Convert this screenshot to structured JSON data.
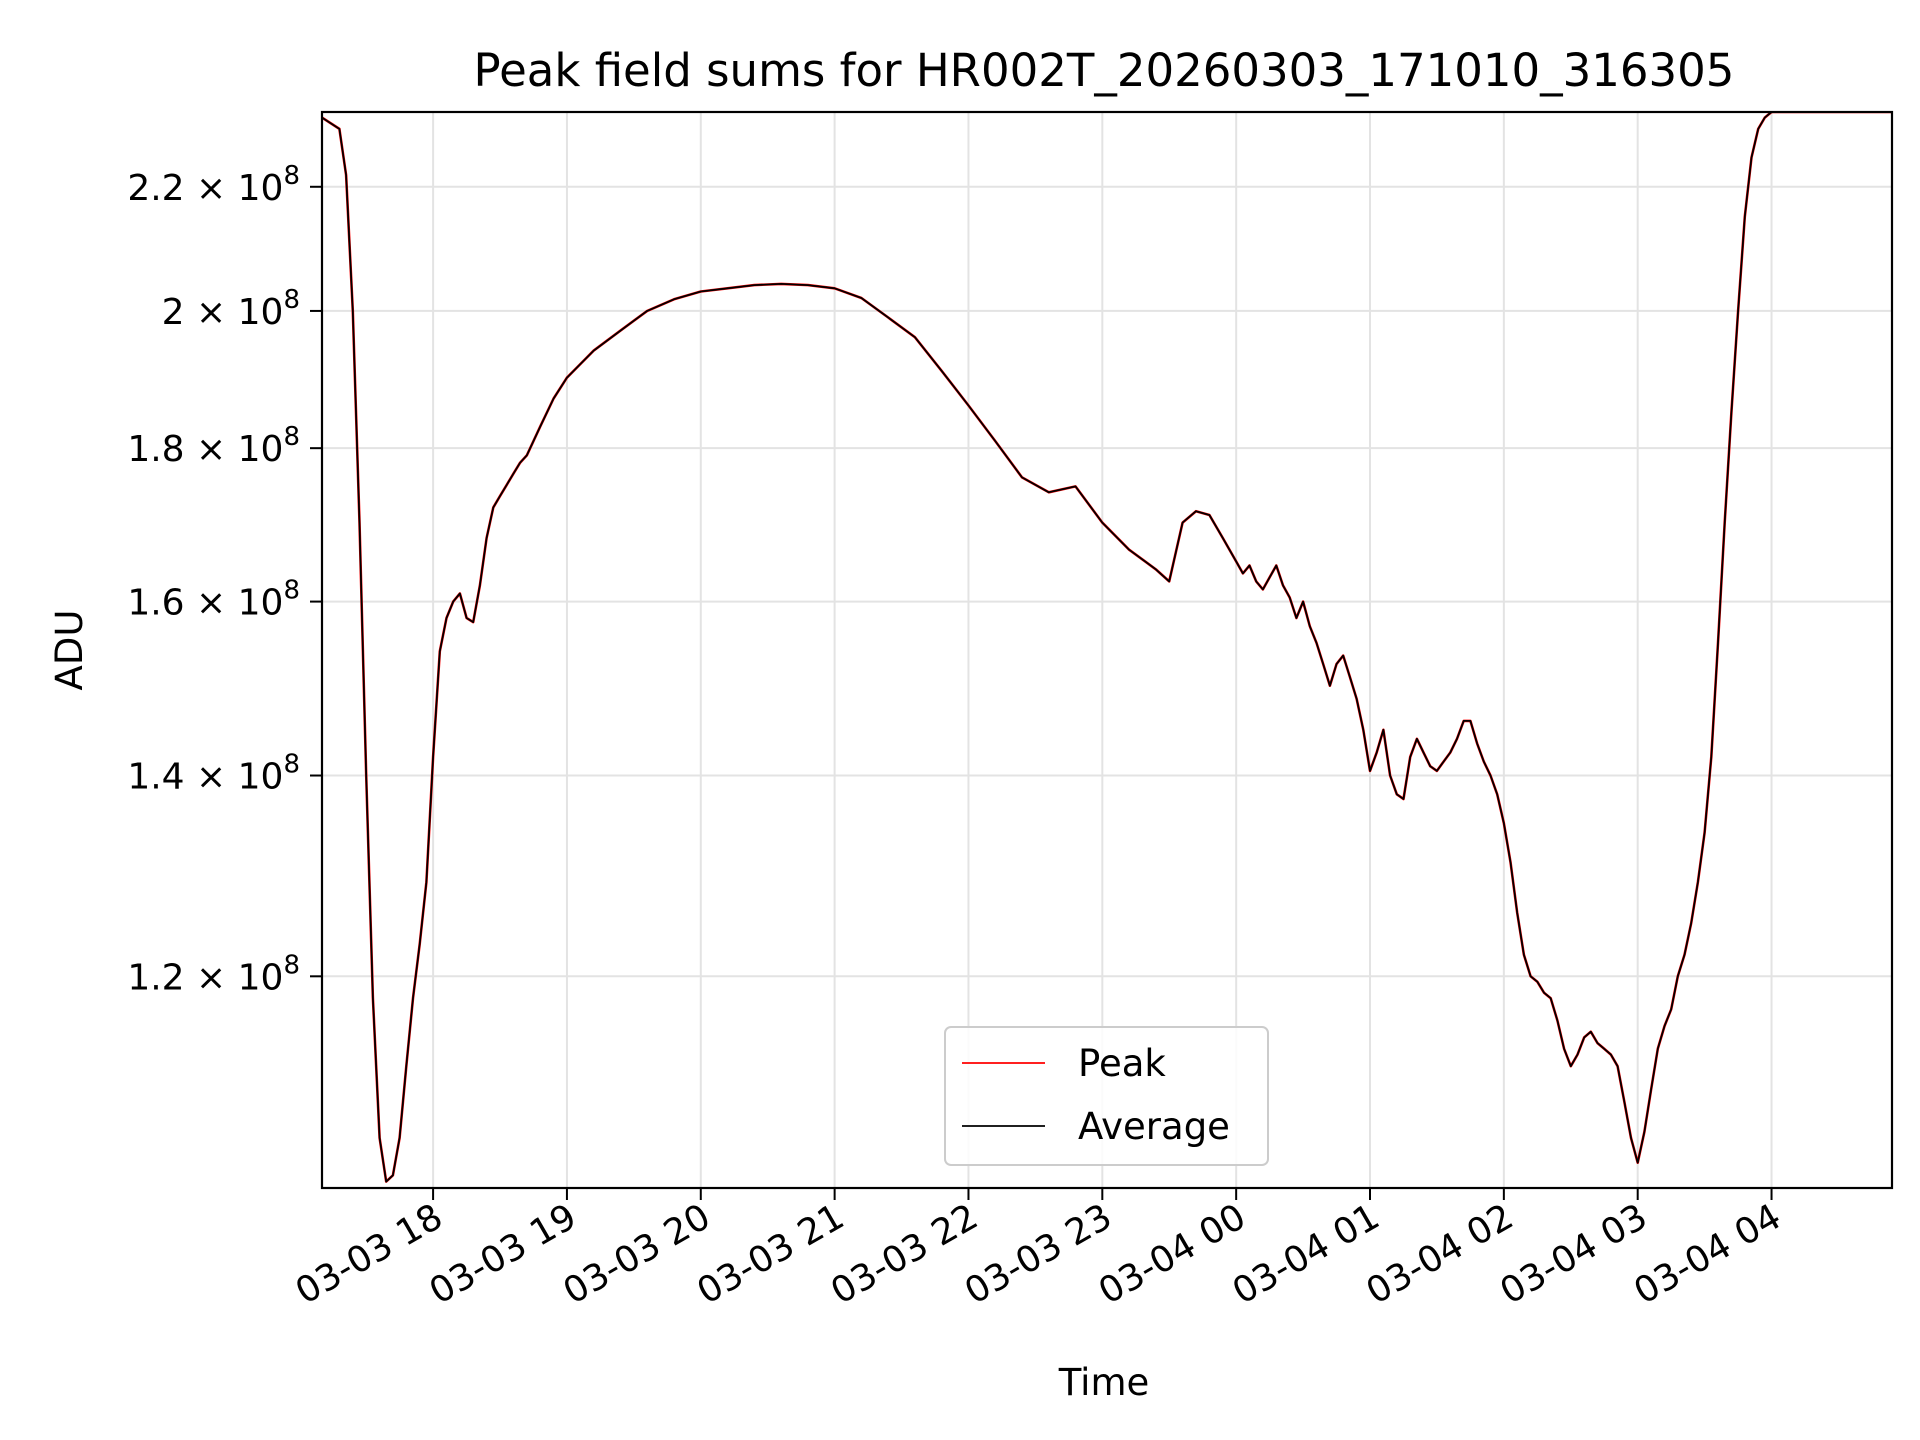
{
  "chart_data": {
    "type": "line",
    "title": "Peak field sums for HR002T_20260303_171010_316305",
    "xlabel": "Time",
    "ylabel": "ADU",
    "yscale": "log",
    "xlim": [
      17.17,
      28.9
    ],
    "ylim": [
      102000000,
      233000000
    ],
    "grid": true,
    "legend_position": "lower-center",
    "x_ticks": [
      {
        "value": 18,
        "label": "03-03 18"
      },
      {
        "value": 19,
        "label": "03-03 19"
      },
      {
        "value": 20,
        "label": "03-03 20"
      },
      {
        "value": 21,
        "label": "03-03 21"
      },
      {
        "value": 22,
        "label": "03-03 22"
      },
      {
        "value": 23,
        "label": "03-03 23"
      },
      {
        "value": 24,
        "label": "03-04 00"
      },
      {
        "value": 25,
        "label": "03-04 01"
      },
      {
        "value": 26,
        "label": "03-04 02"
      },
      {
        "value": 27,
        "label": "03-04 03"
      },
      {
        "value": 28,
        "label": "03-04 04"
      }
    ],
    "y_ticks": [
      {
        "value": 120000000,
        "mantissa": "1.2",
        "base": "10",
        "exp": "8"
      },
      {
        "value": 140000000,
        "mantissa": "1.4",
        "base": "10",
        "exp": "8"
      },
      {
        "value": 160000000,
        "mantissa": "1.6",
        "base": "10",
        "exp": "8"
      },
      {
        "value": 180000000,
        "mantissa": "1.8",
        "base": "10",
        "exp": "8"
      },
      {
        "value": 200000000,
        "mantissa": "2",
        "base": "10",
        "exp": "8"
      },
      {
        "value": 220000000,
        "mantissa": "2.2",
        "base": "10",
        "exp": "8"
      }
    ],
    "x_unit": "hours since 2026-03-03 00:00",
    "y_unit": "ADU",
    "series": [
      {
        "name": "Peak",
        "color": "#ff0000",
        "x": [
          17.17,
          17.3,
          17.35,
          17.4,
          17.45,
          17.5,
          17.55,
          17.6,
          17.65,
          17.7,
          17.75,
          17.8,
          17.85,
          17.9,
          17.95,
          18.0,
          18.05,
          18.1,
          18.15,
          18.2,
          18.25,
          18.3,
          18.35,
          18.4,
          18.45,
          18.5,
          18.55,
          18.6,
          18.65,
          18.7,
          18.8,
          18.9,
          19.0,
          19.1,
          19.2,
          19.3,
          19.4,
          19.6,
          19.8,
          20.0,
          20.2,
          20.4,
          20.6,
          20.8,
          21.0,
          21.2,
          21.4,
          21.6,
          21.8,
          22.0,
          22.2,
          22.4,
          22.6,
          22.8,
          23.0,
          23.2,
          23.4,
          23.5,
          23.6,
          23.7,
          23.8,
          23.9,
          24.0,
          24.05,
          24.1,
          24.15,
          24.2,
          24.25,
          24.3,
          24.35,
          24.4,
          24.45,
          24.5,
          24.55,
          24.6,
          24.65,
          24.7,
          24.75,
          24.8,
          24.85,
          24.9,
          24.95,
          25.0,
          25.05,
          25.1,
          25.15,
          25.2,
          25.25,
          25.3,
          25.35,
          25.4,
          25.45,
          25.5,
          25.55,
          25.6,
          25.65,
          25.7,
          25.75,
          25.8,
          25.85,
          25.9,
          25.95,
          26.0,
          26.05,
          26.1,
          26.15,
          26.2,
          26.25,
          26.3,
          26.35,
          26.4,
          26.45,
          26.5,
          26.55,
          26.6,
          26.65,
          26.7,
          26.75,
          26.8,
          26.85,
          26.9,
          26.95,
          27.0,
          27.05,
          27.1,
          27.15,
          27.2,
          27.25,
          27.3,
          27.35,
          27.4,
          27.45,
          27.5,
          27.55,
          27.6,
          27.65,
          27.7,
          27.75,
          27.8,
          27.85,
          27.9,
          27.95,
          28.0,
          28.05,
          28.1,
          28.15,
          28.2,
          28.25,
          28.3,
          28.35,
          28.4,
          28.45,
          28.5,
          28.55,
          28.6,
          28.7,
          28.8,
          28.9
        ],
        "y": [
          232000000,
          230000000,
          222000000,
          200000000,
          170000000,
          140000000,
          118000000,
          106000000,
          102500000,
          103000000,
          106000000,
          112000000,
          118000000,
          123000000,
          129000000,
          142000000,
          154000000,
          158000000,
          160000000,
          161000000,
          158000000,
          157500000,
          162000000,
          168000000,
          172000000,
          173500000,
          175000000,
          176500000,
          178000000,
          179000000,
          183000000,
          187000000,
          190000000,
          192000000,
          194000000,
          195500000,
          197000000,
          200000000,
          201800000,
          203000000,
          203500000,
          204000000,
          204200000,
          204000000,
          203500000,
          202000000,
          199000000,
          196000000,
          191000000,
          186000000,
          181000000,
          176000000,
          174000000,
          174800000,
          170000000,
          166500000,
          164000000,
          162500000,
          170000000,
          171500000,
          171000000,
          168000000,
          165000000,
          163500000,
          164500000,
          162500000,
          161500000,
          163000000,
          164500000,
          162000000,
          160500000,
          158000000,
          160000000,
          157000000,
          155000000,
          152500000,
          150000000,
          152500000,
          153500000,
          151000000,
          148500000,
          145000000,
          140500000,
          142500000,
          145000000,
          140000000,
          138000000,
          137500000,
          142000000,
          144000000,
          142500000,
          141000000,
          140500000,
          141500000,
          142500000,
          144000000,
          146000000,
          146000000,
          143500000,
          141500000,
          140000000,
          138000000,
          135000000,
          131000000,
          126000000,
          122000000,
          120000000,
          119500000,
          118500000,
          118000000,
          116000000,
          113500000,
          112000000,
          113000000,
          114500000,
          115000000,
          114000000,
          113500000,
          113000000,
          112000000,
          109000000,
          106000000,
          104000000,
          106500000,
          110000000,
          113500000,
          115500000,
          117000000,
          120000000,
          122000000,
          125000000,
          129000000,
          134000000,
          142000000,
          155000000,
          170000000,
          185000000,
          200000000,
          215000000,
          225000000,
          230000000,
          232000000,
          233000000,
          233000000,
          233000000,
          233000000,
          233000000,
          233000000,
          233000000,
          233000000,
          233000000,
          233000000,
          233000000,
          233000000,
          233000000,
          233000000,
          233000000,
          233000000
        ]
      },
      {
        "name": "Average",
        "color": "#000000",
        "x": [
          17.17,
          17.3,
          17.35,
          17.4,
          17.45,
          17.5,
          17.55,
          17.6,
          17.65,
          17.7,
          17.75,
          17.8,
          17.85,
          17.9,
          17.95,
          18.0,
          18.05,
          18.1,
          18.15,
          18.2,
          18.25,
          18.3,
          18.35,
          18.4,
          18.45,
          18.5,
          18.55,
          18.6,
          18.65,
          18.7,
          18.8,
          18.9,
          19.0,
          19.1,
          19.2,
          19.3,
          19.4,
          19.6,
          19.8,
          20.0,
          20.2,
          20.4,
          20.6,
          20.8,
          21.0,
          21.2,
          21.4,
          21.6,
          21.8,
          22.0,
          22.2,
          22.4,
          22.6,
          22.8,
          23.0,
          23.2,
          23.4,
          23.5,
          23.6,
          23.7,
          23.8,
          23.9,
          24.0,
          24.05,
          24.1,
          24.15,
          24.2,
          24.25,
          24.3,
          24.35,
          24.4,
          24.45,
          24.5,
          24.55,
          24.6,
          24.65,
          24.7,
          24.75,
          24.8,
          24.85,
          24.9,
          24.95,
          25.0,
          25.05,
          25.1,
          25.15,
          25.2,
          25.25,
          25.3,
          25.35,
          25.4,
          25.45,
          25.5,
          25.55,
          25.6,
          25.65,
          25.7,
          25.75,
          25.8,
          25.85,
          25.9,
          25.95,
          26.0,
          26.05,
          26.1,
          26.15,
          26.2,
          26.25,
          26.3,
          26.35,
          26.4,
          26.45,
          26.5,
          26.55,
          26.6,
          26.65,
          26.7,
          26.75,
          26.8,
          26.85,
          26.9,
          26.95,
          27.0,
          27.05,
          27.1,
          27.15,
          27.2,
          27.25,
          27.3,
          27.35,
          27.4,
          27.45,
          27.5,
          27.55,
          27.6,
          27.65,
          27.7,
          27.75,
          27.8,
          27.85,
          27.9,
          27.95,
          28.0,
          28.05,
          28.1,
          28.15,
          28.2,
          28.25,
          28.3,
          28.35,
          28.4,
          28.45,
          28.5,
          28.55,
          28.6,
          28.7,
          28.8,
          28.9
        ],
        "y": [
          232000000,
          230000000,
          222000000,
          200000000,
          170000000,
          140000000,
          118000000,
          106000000,
          102500000,
          103000000,
          106000000,
          112000000,
          118000000,
          123000000,
          129000000,
          142000000,
          154000000,
          158000000,
          160000000,
          161000000,
          158000000,
          157500000,
          162000000,
          168000000,
          172000000,
          173500000,
          175000000,
          176500000,
          178000000,
          179000000,
          183000000,
          187000000,
          190000000,
          192000000,
          194000000,
          195500000,
          197000000,
          200000000,
          201800000,
          203000000,
          203500000,
          204000000,
          204200000,
          204000000,
          203500000,
          202000000,
          199000000,
          196000000,
          191000000,
          186000000,
          181000000,
          176000000,
          174000000,
          174800000,
          170000000,
          166500000,
          164000000,
          162500000,
          170000000,
          171500000,
          171000000,
          168000000,
          165000000,
          163500000,
          164500000,
          162500000,
          161500000,
          163000000,
          164500000,
          162000000,
          160500000,
          158000000,
          160000000,
          157000000,
          155000000,
          152500000,
          150000000,
          152500000,
          153500000,
          151000000,
          148500000,
          145000000,
          140500000,
          142500000,
          145000000,
          140000000,
          138000000,
          137500000,
          142000000,
          144000000,
          142500000,
          141000000,
          140500000,
          141500000,
          142500000,
          144000000,
          146000000,
          146000000,
          143500000,
          141500000,
          140000000,
          138000000,
          135000000,
          131000000,
          126000000,
          122000000,
          120000000,
          119500000,
          118500000,
          118000000,
          116000000,
          113500000,
          112000000,
          113000000,
          114500000,
          115000000,
          114000000,
          113500000,
          113000000,
          112000000,
          109000000,
          106000000,
          104000000,
          106500000,
          110000000,
          113500000,
          115500000,
          117000000,
          120000000,
          122000000,
          125000000,
          129000000,
          134000000,
          142000000,
          155000000,
          170000000,
          185000000,
          200000000,
          215000000,
          225000000,
          230000000,
          232000000,
          233000000,
          233000000,
          233000000,
          233000000,
          233000000,
          233000000,
          233000000,
          233000000,
          233000000,
          233000000,
          233000000,
          233000000,
          233000000,
          233000000,
          233000000,
          233000000
        ]
      }
    ]
  }
}
